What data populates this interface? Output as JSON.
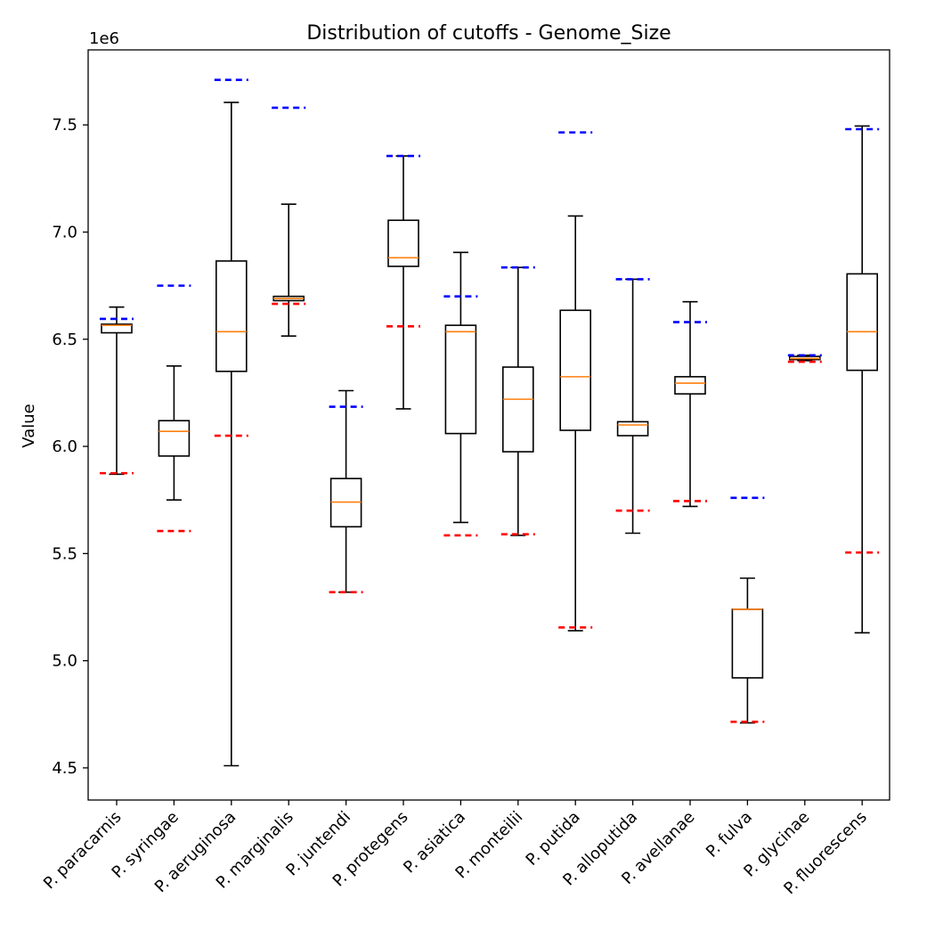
{
  "chart_data": {
    "type": "box",
    "title": "Distribution of cutoffs - Genome_Size",
    "xlabel": "",
    "ylabel": "Value",
    "y_scale_label": "1e6",
    "ylim": [
      4.35,
      7.85
    ],
    "yticks": [
      4.5,
      5.0,
      5.5,
      6.0,
      6.5,
      7.0,
      7.5
    ],
    "ytick_labels": [
      "4.5",
      "5.0",
      "5.5",
      "6.0",
      "6.5",
      "7.0",
      "7.5"
    ],
    "grid": false,
    "colors": {
      "box": "#000000",
      "median": "#ff7f0e",
      "upper_cutoff": "#0000ff",
      "lower_cutoff": "#ff0000"
    },
    "categories": [
      "P. paracarnis",
      "P. syringae",
      "P. aeruginosa",
      "P. marginalis",
      "P. juntendi",
      "P. protegens",
      "P. asiatica",
      "P. monteilii",
      "P. putida",
      "P. alloputida",
      "P. avellanae",
      "P. fulva",
      "P. glycinae",
      "P. fluorescens"
    ],
    "boxes": [
      {
        "whislo": 5.87,
        "q1": 6.53,
        "med": 6.565,
        "q3": 6.57,
        "whishi": 6.65
      },
      {
        "whislo": 5.75,
        "q1": 5.955,
        "med": 6.07,
        "q3": 6.12,
        "whishi": 6.375
      },
      {
        "whislo": 4.51,
        "q1": 6.35,
        "med": 6.535,
        "q3": 6.865,
        "whishi": 7.605
      },
      {
        "whislo": 6.515,
        "q1": 6.68,
        "med": 6.69,
        "q3": 6.7,
        "whishi": 7.13
      },
      {
        "whislo": 5.32,
        "q1": 5.625,
        "med": 5.74,
        "q3": 5.85,
        "whishi": 6.26
      },
      {
        "whislo": 6.175,
        "q1": 6.84,
        "med": 6.88,
        "q3": 7.055,
        "whishi": 7.355
      },
      {
        "whislo": 5.645,
        "q1": 6.06,
        "med": 6.535,
        "q3": 6.565,
        "whishi": 6.905
      },
      {
        "whislo": 5.585,
        "q1": 5.975,
        "med": 6.22,
        "q3": 6.37,
        "whishi": 6.835
      },
      {
        "whislo": 5.14,
        "q1": 6.075,
        "med": 6.325,
        "q3": 6.635,
        "whishi": 7.075
      },
      {
        "whislo": 5.595,
        "q1": 6.05,
        "med": 6.1,
        "q3": 6.115,
        "whishi": 6.78
      },
      {
        "whislo": 5.72,
        "q1": 6.245,
        "med": 6.295,
        "q3": 6.325,
        "whishi": 6.675
      },
      {
        "whislo": 4.71,
        "q1": 4.92,
        "med": 5.24,
        "q3": 5.24,
        "whishi": 5.385
      },
      {
        "whislo": 6.4,
        "q1": 6.405,
        "med": 6.41,
        "q3": 6.42,
        "whishi": 6.425
      },
      {
        "whislo": 5.13,
        "q1": 6.355,
        "med": 6.535,
        "q3": 6.805,
        "whishi": 7.495
      }
    ],
    "upper_cutoffs": [
      6.595,
      6.75,
      7.71,
      7.58,
      6.185,
      7.355,
      6.7,
      6.835,
      7.465,
      6.78,
      6.58,
      5.76,
      6.425,
      7.48
    ],
    "lower_cutoffs": [
      5.875,
      5.605,
      6.05,
      6.665,
      5.32,
      6.56,
      5.585,
      5.59,
      5.155,
      5.7,
      5.745,
      4.715,
      6.395,
      5.505
    ]
  }
}
